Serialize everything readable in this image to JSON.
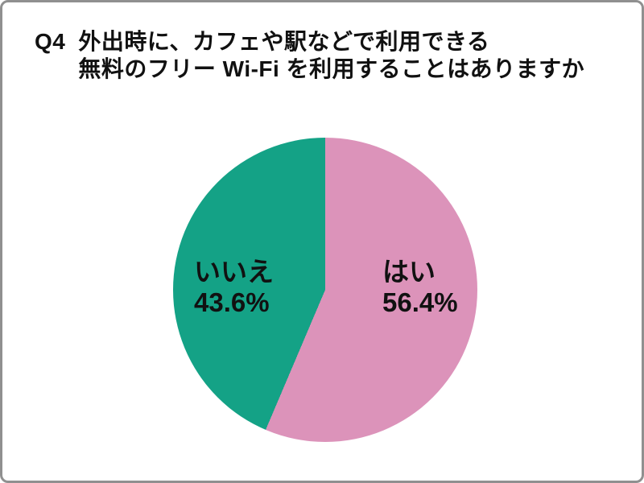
{
  "frame": {
    "background": "#ffffff",
    "border_color": "#909090"
  },
  "title": {
    "prefix": "Q4",
    "line1": "外出時に、カフェや駅などで利用できる",
    "line2": "無料のフリー Wi-Fi を利用することはありますか"
  },
  "chart_data": {
    "type": "pie",
    "title": "Q4 外出時に、カフェや駅などで利用できる 無料のフリー Wi-Fi を利用することはありますか",
    "start_angle_deg": 0,
    "direction": "clockwise",
    "legend_position": "inside-slices",
    "text_color": "#111111",
    "slices": [
      {
        "label": "はい",
        "value": 56.4,
        "display": "56.4%",
        "color": "#dc93ba",
        "position": "right"
      },
      {
        "label": "いいえ",
        "value": 43.6,
        "display": "43.6%",
        "color": "#14a286",
        "position": "left"
      }
    ]
  }
}
